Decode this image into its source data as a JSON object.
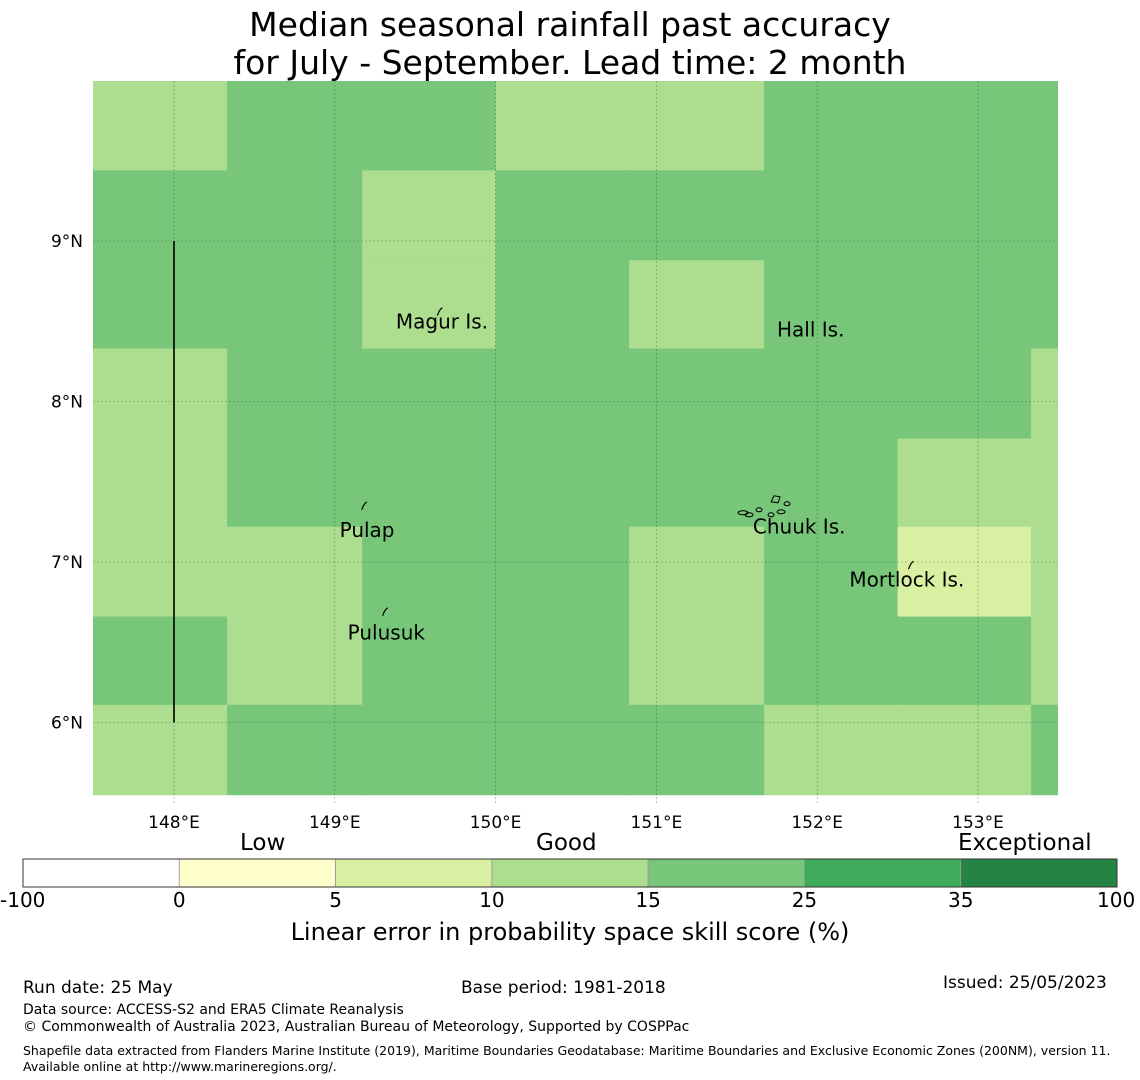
{
  "title": {
    "line1": "Median seasonal rainfall past accuracy",
    "line2": "for July - September. Lead time: 2 month"
  },
  "map": {
    "lon_range": [
      147.5,
      153.5
    ],
    "lat_range": [
      5.5,
      10.0
    ],
    "lon_ticks": [
      "148°E",
      "149°E",
      "150°E",
      "151°E",
      "152°E",
      "153°E"
    ],
    "lat_ticks": [
      "9°N",
      "8°N",
      "7°N",
      "6°N"
    ],
    "grid_lon_edges": [
      147.33,
      148.33,
      149.17,
      150.0,
      150.83,
      151.67,
      152.5,
      153.33,
      154.17
    ],
    "grid_lat_edges": [
      10.25,
      9.44,
      8.88,
      8.33,
      7.77,
      7.22,
      6.66,
      6.11,
      5.55
    ],
    "grid_levels": [
      [
        3,
        4,
        4,
        3,
        3,
        4,
        4,
        4
      ],
      [
        4,
        4,
        3,
        4,
        4,
        4,
        4,
        4
      ],
      [
        4,
        4,
        3,
        4,
        3,
        4,
        4,
        4
      ],
      [
        3,
        4,
        4,
        4,
        4,
        4,
        4,
        3
      ],
      [
        3,
        4,
        4,
        4,
        4,
        4,
        3,
        3
      ],
      [
        3,
        3,
        4,
        4,
        3,
        4,
        2,
        3
      ],
      [
        4,
        3,
        4,
        4,
        3,
        4,
        4,
        3
      ],
      [
        3,
        4,
        4,
        4,
        4,
        3,
        3,
        4
      ]
    ],
    "islands": [
      {
        "name": "Magur Is.",
        "lon": 149.38,
        "lat": 8.5
      },
      {
        "name": "Hall Is.",
        "lon": 151.75,
        "lat": 8.45
      },
      {
        "name": "Pulap",
        "lon": 149.03,
        "lat": 7.2
      },
      {
        "name": "Chuuk Is.",
        "lon": 151.6,
        "lat": 7.22
      },
      {
        "name": "Mortlock Is.",
        "lon": 152.2,
        "lat": 6.89
      },
      {
        "name": "Pulusuk",
        "lon": 149.08,
        "lat": 6.56
      }
    ],
    "boundary_line": {
      "lon": 148.0,
      "lat_from": 6.0,
      "lat_to": 9.0
    }
  },
  "colorbar": {
    "levels": [
      "-100",
      "0",
      "5",
      "10",
      "15",
      "25",
      "35",
      "100"
    ],
    "colors": [
      "#ffffff",
      "#ffffcc",
      "#d9f0a3",
      "#addd8e",
      "#78c679",
      "#41ab5d",
      "#238443"
    ],
    "categories": [
      "Low",
      "Good",
      "Exceptional"
    ],
    "title": "Linear error in probability space skill score (%)"
  },
  "footer": {
    "run_date": "Run date: 25 May",
    "base_period": "Base period: 1981-2018",
    "issued": "Issued: 25/05/2023",
    "data_source": "Data source: ACCESS-S2 and ERA5 Climate Reanalysis",
    "copyright": "© Commonwealth of Australia 2023, Australian Bureau of Meteorology, Supported by COSPPac",
    "shapefile": "Shapefile data extracted from Flanders Marine Institute (2019), Maritime Boundaries Geodatabase: Maritime Boundaries and Exclusive Economic Zones (200NM), version 11. Available online at http://www.marineregions.org/."
  }
}
